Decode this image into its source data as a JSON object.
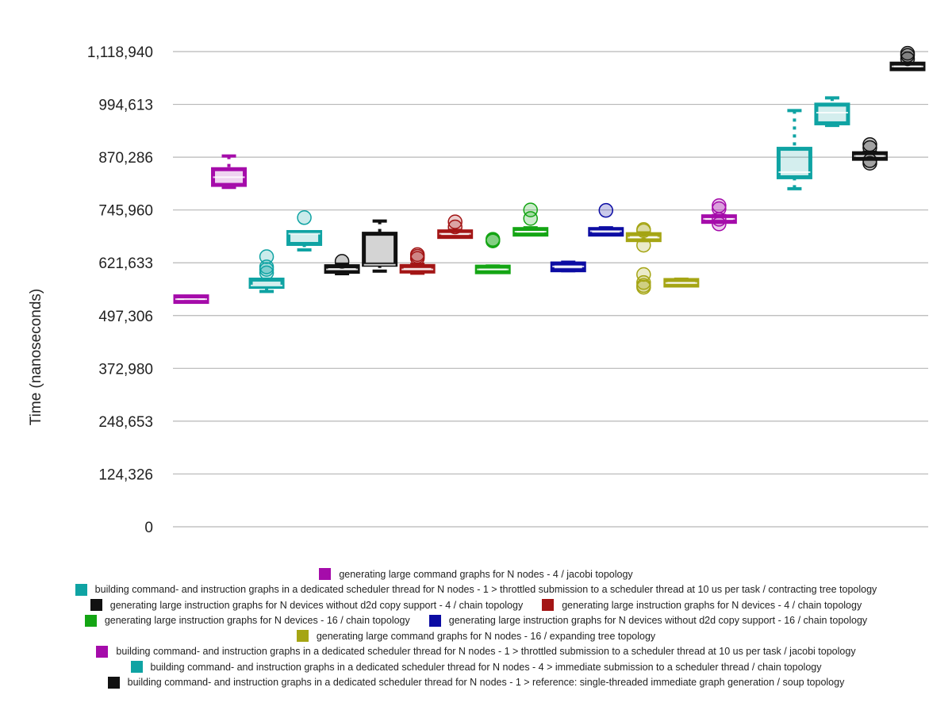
{
  "chart_data": {
    "type": "box",
    "title": "",
    "xlabel": "",
    "ylabel": "Time (nanoseconds)",
    "ylim": [
      0,
      1118940
    ],
    "yticks": [
      0,
      124326,
      248653,
      372980,
      497306,
      621633,
      745960,
      870286,
      994613,
      1118940
    ],
    "ytick_labels": [
      "0",
      "124,326",
      "248,653",
      "372,980",
      "497,306",
      "621,633",
      "745,960",
      "870,286",
      "994,613",
      "1,118,940"
    ],
    "grid": true,
    "legend_position": "bottom",
    "series": [
      {
        "name": "generating large command graphs for N nodes - 4 / jacobi topology",
        "color": "#A50CAA",
        "boxes": [
          {
            "min": 532000,
            "q1": 532000,
            "median": 536000,
            "q3": 540000,
            "max": 543000,
            "outliers": []
          }
        ]
      },
      {
        "name": "building command- and instruction graphs in a dedicated scheduler thread for N nodes - 1 > throttled submission to a scheduler thread at 10 us per task / contracting tree topology",
        "color": "#0FA3A3",
        "boxes": [
          {
            "min": 554000,
            "q1": 565000,
            "median": 568000,
            "q3": 582000,
            "max": 582000,
            "outliers": [
              598000,
              606000,
              612000,
              636000
            ]
          },
          {
            "min": 796000,
            "q1": 823000,
            "median": 835000,
            "q3": 890000,
            "max": 980000,
            "outliers": []
          }
        ]
      },
      {
        "name": "generating large instruction graphs for N devices without d2d copy support - 4 / chain topology",
        "color": "#111111",
        "boxes": [
          {
            "min": 596000,
            "q1": 602000,
            "median": 606000,
            "q3": 612000,
            "max": 618000,
            "outliers": [
              625000
            ]
          },
          {
            "min": 602000,
            "q1": 617000,
            "median": 617000,
            "q3": 690000,
            "max": 720000,
            "outliers": []
          }
        ]
      },
      {
        "name": "generating large instruction graphs for N devices - 4 / chain topology",
        "color": "#A31515",
        "boxes": [
          {
            "min": 597000,
            "q1": 601000,
            "median": 606000,
            "q3": 614000,
            "max": 618000,
            "outliers": [
              632000,
              637000,
              641000
            ]
          },
          {
            "min": 682000,
            "q1": 684000,
            "median": 690000,
            "q3": 694000,
            "max": 698000,
            "outliers": [
              706000,
              718000
            ]
          }
        ]
      },
      {
        "name": "generating large instruction graphs for N devices - 16 / chain topology",
        "color": "#14A514",
        "boxes": [
          {
            "min": 600000,
            "q1": 601000,
            "median": 606000,
            "q3": 611000,
            "max": 614000,
            "outliers": [
              673000,
              675000,
              677000
            ]
          },
          {
            "min": 688000,
            "q1": 689000,
            "median": 695000,
            "q3": 700000,
            "max": 704000,
            "outliers": [
              726000,
              746000
            ]
          }
        ]
      },
      {
        "name": "generating large instruction graphs for N devices without d2d copy support - 16 / chain topology",
        "color": "#0C0CA3",
        "boxes": [
          {
            "min": 603000,
            "q1": 604000,
            "median": 613000,
            "q3": 620000,
            "max": 623000,
            "outliers": []
          },
          {
            "min": 688000,
            "q1": 689000,
            "median": 696000,
            "q3": 700000,
            "max": 704000,
            "outliers": [
              745000
            ]
          }
        ]
      },
      {
        "name": "generating large command graphs for N nodes - 16 / expanding tree topology",
        "color": "#A5A514",
        "boxes": [
          {
            "min": 674000,
            "q1": 675000,
            "median": 681000,
            "q3": 689000,
            "max": 692000,
            "outliers": [
              564000,
              568000,
              575000,
              594000,
              663000,
              697000,
              700000
            ]
          },
          {
            "min": 568000,
            "q1": 569000,
            "median": 574000,
            "q3": 580000,
            "max": 583000,
            "outliers": []
          }
        ]
      },
      {
        "name": "building command- and instruction graphs in a dedicated scheduler thread for N nodes - 1 > throttled submission to a scheduler thread at 10 us per task / jacobi topology",
        "color": "#A50CAA",
        "boxes": [
          {
            "min": 718000,
            "q1": 719000,
            "median": 725000,
            "q3": 730000,
            "max": 733000,
            "outliers": [
              713000,
              724000,
              749000,
              756000
            ]
          },
          {
            "min": 799000,
            "q1": 805000,
            "median": 823000,
            "q3": 842000,
            "max": 873000,
            "outliers": []
          }
        ]
      },
      {
        "name": "building command- and instruction graphs in a dedicated scheduler thread for N nodes - 4 > immediate submission to a scheduler thread / chain topology",
        "color": "#0FA3A3",
        "boxes": [
          {
            "min": 652000,
            "q1": 666000,
            "median": 690000,
            "q3": 694000,
            "max": 694000,
            "outliers": [
              728000
            ]
          },
          {
            "min": 945000,
            "q1": 950000,
            "median": 975000,
            "q3": 994000,
            "max": 1010000,
            "outliers": []
          }
        ]
      },
      {
        "name": "building command- and instruction graphs in a dedicated scheduler thread for N nodes - 1 > reference: single-threaded immediate graph generation / soup topology",
        "color": "#111111",
        "boxes": [
          {
            "min": 868000,
            "q1": 868000,
            "median": 873000,
            "q3": 878000,
            "max": 882000,
            "outliers": [
              856000,
              862000,
              893000,
              900000
            ]
          },
          {
            "min": 1078000,
            "q1": 1079000,
            "median": 1084000,
            "q3": 1089000,
            "max": 1091000,
            "outliers": [
              1102000,
              1110000,
              1115000
            ]
          }
        ]
      }
    ]
  }
}
